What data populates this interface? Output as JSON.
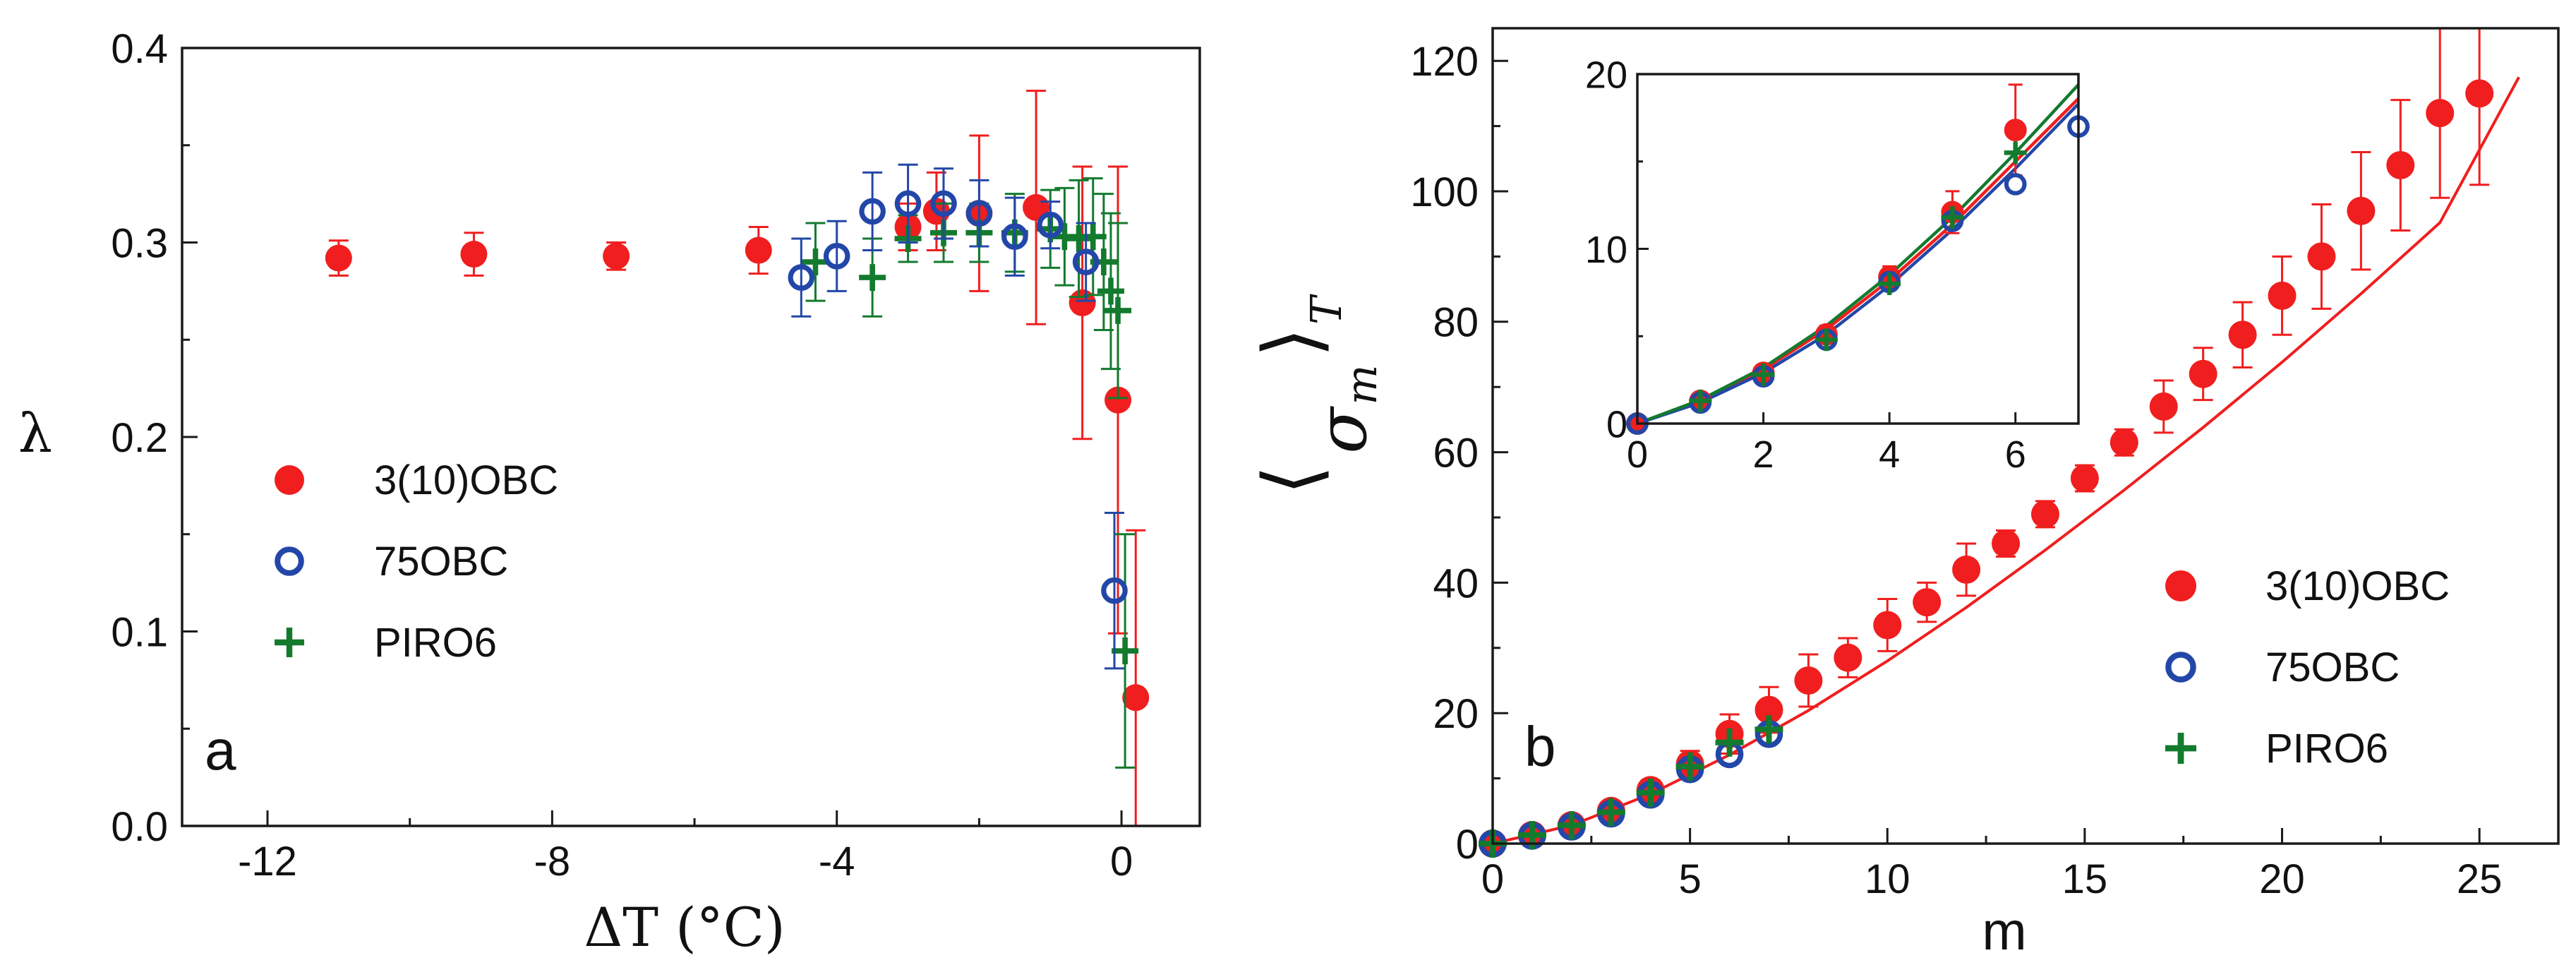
{
  "figure": {
    "colors": {
      "red": "#f01e1e",
      "blue": "#2347a8",
      "green": "#137a2e",
      "axis": "#1a1a1a"
    }
  },
  "chart_data": [
    {
      "type": "scatter",
      "panel_label": "a",
      "xlabel": "ΔT (°C)",
      "ylabel": "λ",
      "xlim": [
        -13.2,
        1.1
      ],
      "ylim": [
        0.0,
        0.4
      ],
      "xticks": [
        -12,
        -8,
        -4,
        0
      ],
      "xtick_labels": [
        "-12",
        "-8",
        "-4",
        "0"
      ],
      "yticks": [
        0.0,
        0.1,
        0.2,
        0.3,
        0.4
      ],
      "ytick_labels": [
        "0.0",
        "0.1",
        "0.2",
        "0.3",
        "0.4"
      ],
      "legend_position": "center-left",
      "series": [
        {
          "name": "3(10)OBC",
          "marker": "filled-circle",
          "color": "#f01e1e",
          "points": [
            {
              "x": -11.0,
              "y": 0.292,
              "err": 0.009
            },
            {
              "x": -9.1,
              "y": 0.294,
              "err": 0.011
            },
            {
              "x": -7.1,
              "y": 0.293,
              "err": 0.007
            },
            {
              "x": -5.1,
              "y": 0.296,
              "err": 0.012
            },
            {
              "x": -3.0,
              "y": 0.308,
              "err": 0.012
            },
            {
              "x": -2.6,
              "y": 0.316,
              "err": 0.02
            },
            {
              "x": -2.0,
              "y": 0.315,
              "err": 0.04
            },
            {
              "x": -1.2,
              "y": 0.318,
              "err": 0.06
            },
            {
              "x": -0.55,
              "y": 0.269,
              "err": 0.07
            },
            {
              "x": -0.05,
              "y": 0.219,
              "err": 0.12
            },
            {
              "x": 0.2,
              "y": 0.066,
              "err": 0.086
            }
          ]
        },
        {
          "name": "75OBC",
          "marker": "open-circle",
          "color": "#2347a8",
          "points": [
            {
              "x": -4.5,
              "y": 0.282,
              "err": 0.02
            },
            {
              "x": -4.0,
              "y": 0.293,
              "err": 0.018
            },
            {
              "x": -3.5,
              "y": 0.316,
              "err": 0.02
            },
            {
              "x": -3.0,
              "y": 0.32,
              "err": 0.02
            },
            {
              "x": -2.5,
              "y": 0.32,
              "err": 0.018
            },
            {
              "x": -2.0,
              "y": 0.315,
              "err": 0.017
            },
            {
              "x": -1.5,
              "y": 0.303,
              "err": 0.02
            },
            {
              "x": -1.0,
              "y": 0.309,
              "err": 0.012
            },
            {
              "x": -0.5,
              "y": 0.29,
              "err": 0.02
            },
            {
              "x": -0.1,
              "y": 0.121,
              "err": 0.04
            }
          ]
        },
        {
          "name": "PIRO6",
          "marker": "plus",
          "color": "#137a2e",
          "points": [
            {
              "x": -4.3,
              "y": 0.29,
              "err": 0.02
            },
            {
              "x": -3.5,
              "y": 0.282,
              "err": 0.02
            },
            {
              "x": -3.0,
              "y": 0.302,
              "err": 0.012
            },
            {
              "x": -2.5,
              "y": 0.305,
              "err": 0.015
            },
            {
              "x": -2.0,
              "y": 0.305,
              "err": 0.015
            },
            {
              "x": -1.5,
              "y": 0.305,
              "err": 0.02
            },
            {
              "x": -1.0,
              "y": 0.307,
              "err": 0.02
            },
            {
              "x": -0.8,
              "y": 0.303,
              "err": 0.025
            },
            {
              "x": -0.6,
              "y": 0.302,
              "err": 0.03
            },
            {
              "x": -0.4,
              "y": 0.303,
              "err": 0.03
            },
            {
              "x": -0.25,
              "y": 0.29,
              "err": 0.035
            },
            {
              "x": -0.15,
              "y": 0.275,
              "err": 0.04
            },
            {
              "x": -0.05,
              "y": 0.265,
              "err": 0.045
            },
            {
              "x": 0.05,
              "y": 0.09,
              "err": 0.06
            }
          ]
        }
      ]
    },
    {
      "type": "scatter",
      "panel_label": "b",
      "xlabel": "m",
      "ylabel": "⟨σ_m⟩_T",
      "ylabel_main": "σ",
      "ylabel_sub_inner": "m",
      "ylabel_sub_outer": "T",
      "xlim": [
        0,
        27
      ],
      "ylim": [
        0,
        125
      ],
      "xticks": [
        0,
        5,
        10,
        15,
        20,
        25
      ],
      "xtick_labels": [
        "0",
        "5",
        "10",
        "15",
        "20",
        "25"
      ],
      "yticks": [
        0,
        20,
        40,
        60,
        80,
        100,
        120
      ],
      "ytick_labels": [
        "0",
        "20",
        "40",
        "60",
        "80",
        "100",
        "120"
      ],
      "legend_position": "bottom-right",
      "series": [
        {
          "name": "3(10)OBC",
          "marker": "filled-circle",
          "color": "#f01e1e",
          "points": [
            {
              "x": 0,
              "y": 0,
              "err": 0
            },
            {
              "x": 1,
              "y": 1.3,
              "err": 0.8
            },
            {
              "x": 2,
              "y": 2.8,
              "err": 1
            },
            {
              "x": 3,
              "y": 5,
              "err": 1
            },
            {
              "x": 4,
              "y": 8.2,
              "err": 1.5
            },
            {
              "x": 5,
              "y": 12.2,
              "err": 2
            },
            {
              "x": 6,
              "y": 16.8,
              "err": 3
            },
            {
              "x": 7,
              "y": 20.5,
              "err": 3.5
            },
            {
              "x": 8,
              "y": 25,
              "err": 4
            },
            {
              "x": 9,
              "y": 28.5,
              "err": 3
            },
            {
              "x": 10,
              "y": 33.5,
              "err": 4
            },
            {
              "x": 11,
              "y": 37,
              "err": 3
            },
            {
              "x": 12,
              "y": 42,
              "err": 4
            },
            {
              "x": 13,
              "y": 46,
              "err": 2
            },
            {
              "x": 14,
              "y": 50.5,
              "err": 2
            },
            {
              "x": 15,
              "y": 56,
              "err": 2
            },
            {
              "x": 16,
              "y": 61.5,
              "err": 2
            },
            {
              "x": 17,
              "y": 67,
              "err": 4
            },
            {
              "x": 18,
              "y": 72,
              "err": 4
            },
            {
              "x": 19,
              "y": 78,
              "err": 5
            },
            {
              "x": 20,
              "y": 84,
              "err": 6
            },
            {
              "x": 21,
              "y": 90,
              "err": 8
            },
            {
              "x": 22,
              "y": 97,
              "err": 9
            },
            {
              "x": 23,
              "y": 104,
              "err": 10
            },
            {
              "x": 24,
              "y": 112,
              "err": 13
            },
            {
              "x": 25,
              "y": 115,
              "err": 14
            }
          ]
        },
        {
          "name": "75OBC",
          "marker": "open-circle",
          "color": "#2347a8",
          "points": [
            {
              "x": 0,
              "y": 0
            },
            {
              "x": 1,
              "y": 1.2
            },
            {
              "x": 2,
              "y": 2.6
            },
            {
              "x": 3,
              "y": 4.6
            },
            {
              "x": 4,
              "y": 7.5
            },
            {
              "x": 5,
              "y": 11.4
            },
            {
              "x": 6,
              "y": 13.7
            },
            {
              "x": 7,
              "y": 16.8
            }
          ]
        },
        {
          "name": "PIRO6",
          "marker": "plus",
          "color": "#137a2e",
          "points": [
            {
              "x": 0,
              "y": 0
            },
            {
              "x": 1,
              "y": 1.3
            },
            {
              "x": 2,
              "y": 2.8
            },
            {
              "x": 3,
              "y": 4.8
            },
            {
              "x": 4,
              "y": 7.8
            },
            {
              "x": 5,
              "y": 11.8
            },
            {
              "x": 6,
              "y": 15.5
            },
            {
              "x": 7,
              "y": 17.5
            }
          ]
        }
      ],
      "fit_lines": [
        {
          "name": "3(10)OBC fit",
          "color": "#f01e1e",
          "x": [
            0,
            2,
            4,
            6,
            8,
            10,
            12,
            14,
            16,
            18,
            20,
            22,
            24,
            26
          ],
          "y": [
            0,
            2.8,
            7.6,
            13.6,
            20.4,
            28,
            36.2,
            45,
            54.2,
            63.8,
            73.8,
            84.3,
            95.2,
            117.5
          ]
        }
      ],
      "inset": {
        "xlim": [
          0,
          7
        ],
        "ylim": [
          0,
          20
        ],
        "xticks": [
          0,
          2,
          4,
          6
        ],
        "xtick_labels": [
          "0",
          "2",
          "4",
          "6"
        ],
        "yticks": [
          0,
          10,
          20
        ],
        "ytick_labels": [
          "0",
          "10",
          "20"
        ],
        "series": [
          {
            "name": "3(10)OBC",
            "marker": "filled-circle",
            "color": "#f01e1e",
            "points": [
              {
                "x": 0,
                "y": 0,
                "err": 0
              },
              {
                "x": 1,
                "y": 1.3,
                "err": 0.3
              },
              {
                "x": 2,
                "y": 2.9,
                "err": 0.4
              },
              {
                "x": 3,
                "y": 5.1,
                "err": 0.5
              },
              {
                "x": 4,
                "y": 8.4,
                "err": 0.6
              },
              {
                "x": 5,
                "y": 12.1,
                "err": 1.2
              },
              {
                "x": 6,
                "y": 16.8,
                "err": 2.6
              }
            ]
          },
          {
            "name": "75OBC",
            "marker": "open-circle",
            "color": "#2347a8",
            "points": [
              {
                "x": 0,
                "y": 0
              },
              {
                "x": 1,
                "y": 1.2
              },
              {
                "x": 2,
                "y": 2.7
              },
              {
                "x": 3,
                "y": 4.8
              },
              {
                "x": 4,
                "y": 8.1
              },
              {
                "x": 5,
                "y": 11.6
              },
              {
                "x": 6,
                "y": 13.7
              },
              {
                "x": 7,
                "y": 17
              }
            ]
          },
          {
            "name": "PIRO6",
            "marker": "plus",
            "color": "#137a2e",
            "points": [
              {
                "x": 1,
                "y": 1.3
              },
              {
                "x": 2,
                "y": 2.8
              },
              {
                "x": 3,
                "y": 4.8
              },
              {
                "x": 4,
                "y": 8.0
              },
              {
                "x": 5,
                "y": 11.8
              },
              {
                "x": 6,
                "y": 15.5
              }
            ]
          }
        ],
        "fit_lines": [
          {
            "name": "red fit",
            "color": "#f01e1e",
            "x": [
              0,
              1,
              2,
              3,
              4,
              5,
              6,
              7
            ],
            "y": [
              0,
              1.3,
              3.1,
              5.4,
              8.2,
              11.4,
              15,
              18.6
            ]
          },
          {
            "name": "blue fit",
            "color": "#2347a8",
            "x": [
              0,
              1,
              2,
              3,
              4,
              5,
              6,
              7
            ],
            "y": [
              0,
              1.2,
              2.9,
              5.1,
              7.9,
              11.1,
              14.6,
              18.3
            ]
          },
          {
            "name": "green fit",
            "color": "#137a2e",
            "x": [
              0,
              1,
              2,
              3,
              4,
              5,
              6,
              7
            ],
            "y": [
              0,
              1.35,
              3.2,
              5.6,
              8.5,
              11.8,
              15.5,
              19.4
            ]
          }
        ]
      }
    }
  ]
}
